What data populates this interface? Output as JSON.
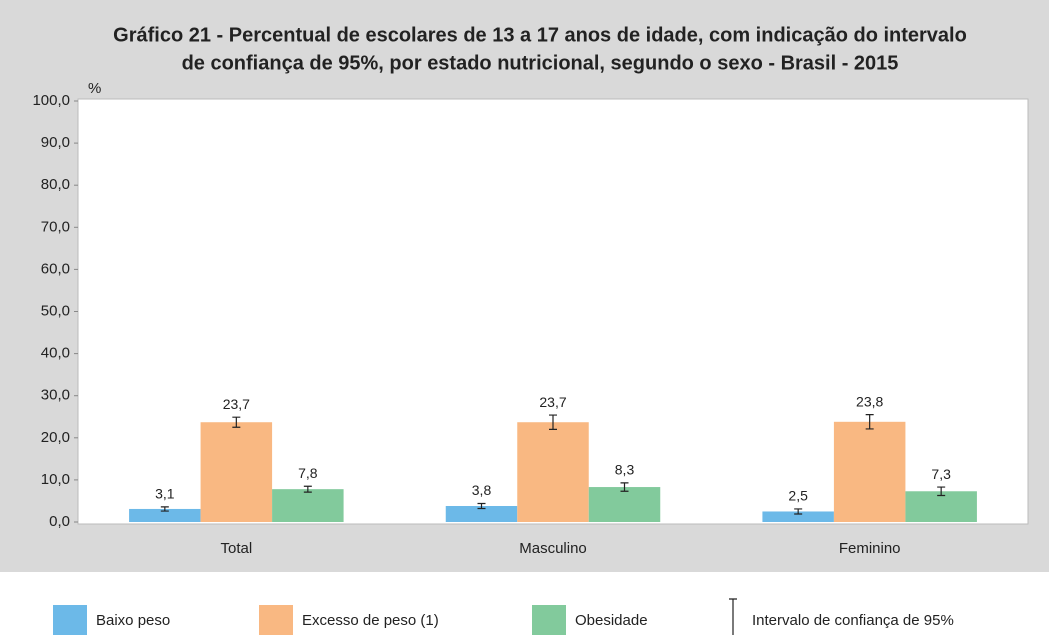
{
  "chart_data": {
    "type": "bar",
    "title": [
      "Gráfico 21 - Percentual de escolares de 13 a 17 anos de idade, com indicação do intervalo",
      "de confiança de 95%, por estado nutricional, segundo o sexo - Brasil - 2015"
    ],
    "y_unit": "%",
    "categories": [
      "Total",
      "Masculino",
      "Feminino"
    ],
    "series": [
      {
        "name": "Baixo peso",
        "color": "#6cb9e8",
        "values": [
          3.1,
          3.8,
          2.5
        ],
        "value_labels": [
          "3,1",
          "3,8",
          "2,5"
        ],
        "errors": [
          0.5,
          0.6,
          0.6
        ]
      },
      {
        "name": "Excesso de peso (1)",
        "color": "#f9b882",
        "values": [
          23.7,
          23.7,
          23.8
        ],
        "value_labels": [
          "23,7",
          "23,7",
          "23,8"
        ],
        "errors": [
          1.2,
          1.7,
          1.7
        ]
      },
      {
        "name": "Obesidade",
        "color": "#82ca9c",
        "values": [
          7.8,
          8.3,
          7.3
        ],
        "value_labels": [
          "7,8",
          "8,3",
          "7,3"
        ],
        "errors": [
          0.7,
          1.0,
          1.0
        ]
      }
    ],
    "error_legend": "Intervalo de confiança de 95%",
    "ylim": [
      0,
      100
    ],
    "yticks": [
      {
        "value": 0,
        "label": "0,0"
      },
      {
        "value": 10,
        "label": "10,0"
      },
      {
        "value": 20,
        "label": "20,0"
      },
      {
        "value": 30,
        "label": "30,0"
      },
      {
        "value": 40,
        "label": "40,0"
      },
      {
        "value": 50,
        "label": "50,0"
      },
      {
        "value": 60,
        "label": "60,0"
      },
      {
        "value": 70,
        "label": "70,0"
      },
      {
        "value": 80,
        "label": "80,0"
      },
      {
        "value": 90,
        "label": "90,0"
      },
      {
        "value": 100,
        "label": "100,0"
      }
    ]
  }
}
